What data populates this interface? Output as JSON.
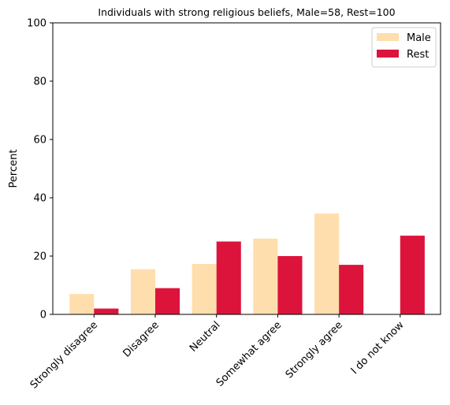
{
  "chart_data": {
    "type": "bar",
    "title": "Individuals with strong religious beliefs, Male=58, Rest=100",
    "xlabel": "",
    "ylabel": "Percent",
    "ylim": [
      0,
      100
    ],
    "yticks": [
      0,
      20,
      40,
      60,
      80,
      100
    ],
    "grid": false,
    "legend_position": "top-right",
    "categories": [
      "Strongly disagree",
      "Disagree",
      "Neutral",
      "Somewhat agree",
      "Strongly agree",
      "I do not know"
    ],
    "series": [
      {
        "name": "Male",
        "color": "#FFDEAD",
        "values": [
          7,
          15.5,
          17.3,
          26,
          34.6,
          0
        ]
      },
      {
        "name": "Rest",
        "color": "#DC143C",
        "values": [
          2,
          9,
          25,
          20,
          17,
          27
        ]
      }
    ]
  }
}
